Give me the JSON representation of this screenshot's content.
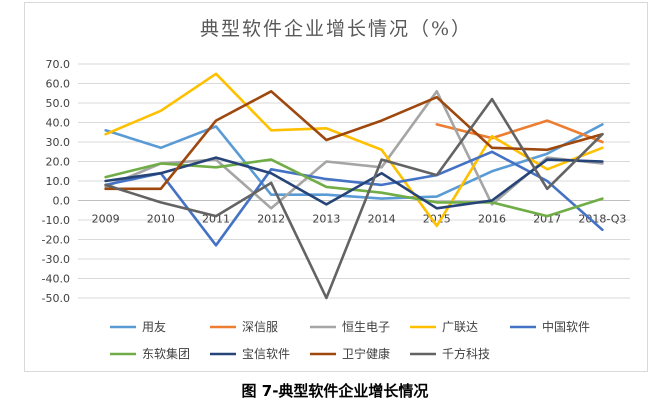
{
  "caption": "图 7-典型软件企业增长情况",
  "chart_data": {
    "type": "line",
    "title": "典型软件企业增长情况（%）",
    "xlabel": "",
    "ylabel": "",
    "ylim": [
      -50,
      70
    ],
    "y_ticks": [
      "70.0",
      "60.0",
      "50.0",
      "40.0",
      "30.0",
      "20.0",
      "10.0",
      "0.0",
      "-10.0",
      "-20.0",
      "-30.0",
      "-40.0",
      "-50.0"
    ],
    "grid": true,
    "legend_position": "bottom",
    "categories": [
      "2009",
      "2010",
      "2011",
      "2012",
      "2013",
      "2014",
      "2015",
      "2016",
      "2017",
      "2018-Q3"
    ],
    "series": [
      {
        "name": "用友",
        "color": "#5b9bd5",
        "values": [
          36,
          27,
          38,
          3,
          3,
          1,
          2,
          15,
          24,
          39
        ]
      },
      {
        "name": "深信服",
        "color": "#ed7d31",
        "values": [
          null,
          null,
          null,
          null,
          null,
          null,
          39,
          32,
          41,
          30
        ]
      },
      {
        "name": "恒生电子",
        "color": "#a5a5a5",
        "values": [
          7,
          19,
          21,
          -4,
          20,
          17,
          56,
          -2,
          22,
          19
        ]
      },
      {
        "name": "广联达",
        "color": "#ffc000",
        "values": [
          34,
          46,
          65,
          36,
          37,
          26,
          -13,
          33,
          16,
          27
        ]
      },
      {
        "name": "中国软件",
        "color": "#4472c4",
        "values": [
          8,
          14,
          -23,
          16,
          11,
          8,
          13,
          25,
          10,
          -15
        ]
      },
      {
        "name": "东软集团",
        "color": "#70ad47",
        "values": [
          12,
          19,
          17,
          21,
          7,
          4,
          -1,
          -1,
          -8,
          1
        ]
      },
      {
        "name": "宝信软件",
        "color": "#264478",
        "values": [
          10,
          14,
          22,
          14,
          -2,
          14,
          -4,
          0,
          21,
          20
        ]
      },
      {
        "name": "卫宁健康",
        "color": "#9e480e",
        "values": [
          6,
          6,
          41,
          56,
          31,
          41,
          53,
          27,
          26,
          34
        ]
      },
      {
        "name": "千方科技",
        "color": "#636363",
        "values": [
          8,
          -1,
          -8,
          9,
          -50,
          21,
          13,
          52,
          6,
          34
        ]
      }
    ]
  }
}
